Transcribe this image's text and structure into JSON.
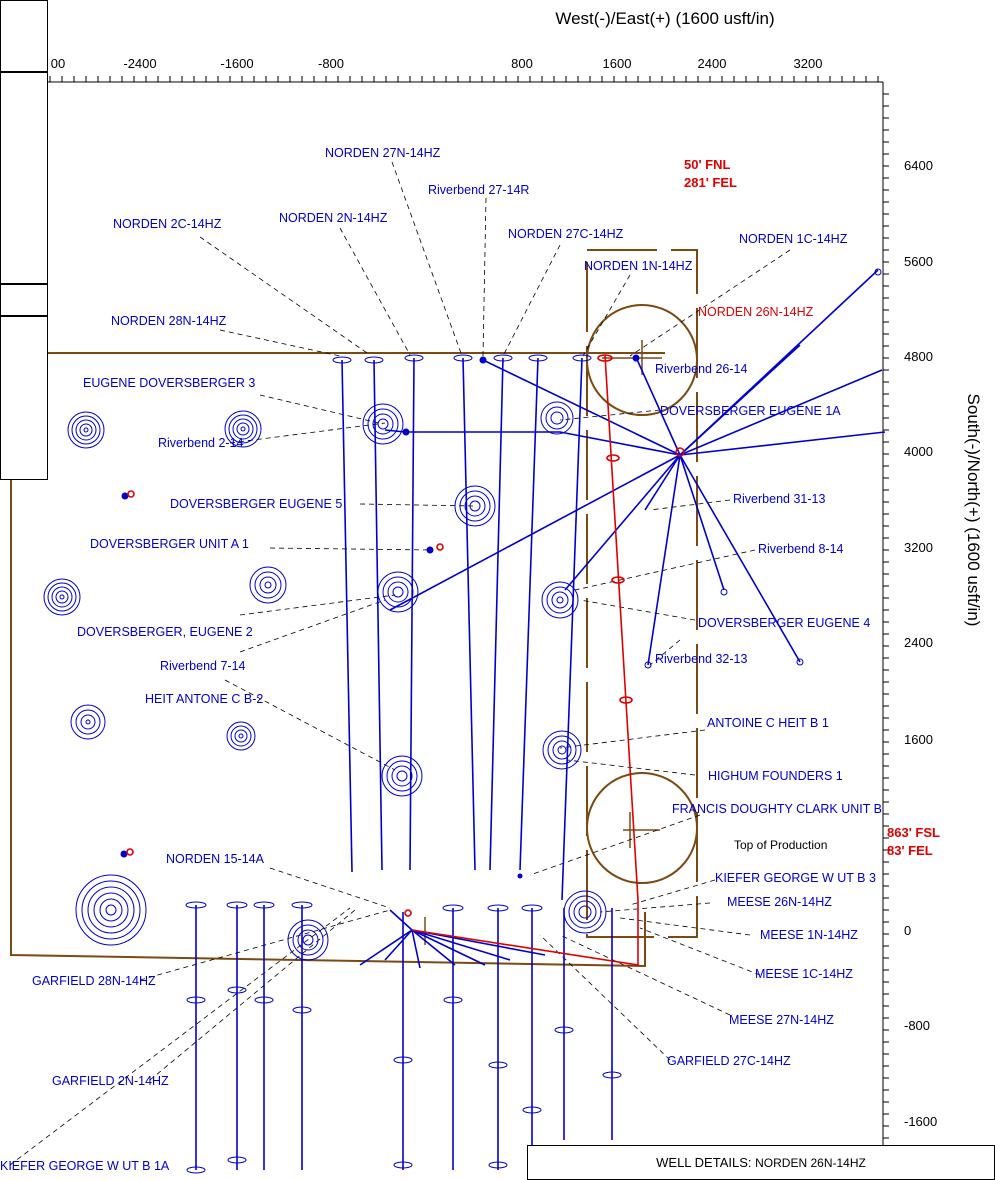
{
  "axes": {
    "top_title": "West(-)/East(+) (1600 usft/in)",
    "right_title": "South(-)/North(+) (1600 usft/in)",
    "x_ticks": [
      "00",
      "-2400",
      "-1600",
      "-800",
      "800",
      "1600",
      "2400",
      "3200"
    ],
    "y_ticks": [
      "6400",
      "5600",
      "4800",
      "4000",
      "3200",
      "2400",
      "1600",
      "0",
      "-800",
      "-1600"
    ]
  },
  "notes": {
    "heel_fnl": "50' FNL",
    "heel_fel": "281' FEL",
    "toe_fsl": "863' FSL",
    "toe_fel": "83' FEL"
  },
  "wells": {
    "norden_27n": "NORDEN 27N-14HZ",
    "riverbend_27_14r": "Riverbend 27-14R",
    "norden_2c": "NORDEN 2C-14HZ",
    "norden_2n": "NORDEN 2N-14HZ",
    "norden_27c": "NORDEN 27C-14HZ",
    "norden_1c": "NORDEN 1C-14HZ",
    "norden_1n": "NORDEN 1N-14HZ",
    "norden_28n": "NORDEN 28N-14HZ",
    "norden_26n": "NORDEN 26N-14HZ",
    "riverbend_26_14": "Riverbend 26-14",
    "eugene_doversberger_3": "EUGENE DOVERSBERGER 3",
    "doversberger_eugene_1a": "DOVERSBERGER EUGENE 1A",
    "riverbend_2_14": "Riverbend 2-14",
    "doversberger_eugene_5": "DOVERSBERGER EUGENE 5",
    "riverbend_31_13": "Riverbend 31-13",
    "doversberger_unit_a1": "DOVERSBERGER UNIT A 1",
    "riverbend_8_14": "Riverbend 8-14",
    "doversberger_eugene_2": "DOVERSBERGER, EUGENE 2",
    "doversberger_eugene_4": "DOVERSBERGER EUGENE 4",
    "riverbend_7_14": "Riverbend 7-14",
    "riverbend_32_13": "Riverbend 32-13",
    "heit_antone_c_b2": "HEIT ANTONE C B-2",
    "antoine_c_heit_b1": "ANTOINE C HEIT B 1",
    "highum_founders_1": "HIGHUM FOUNDERS 1",
    "francis_doughty_clark": "FRANCIS DOUGHTY CLARK UNIT B",
    "top_of_production": "Top of Production",
    "norden_15_14a": "NORDEN 15-14A",
    "kiefer_george_b3": "KIEFER GEORGE W UT B 3",
    "meese_26n": "MEESE 26N-14HZ",
    "meese_1n": "MEESE 1N-14HZ",
    "meese_1c": "MEESE 1C-14HZ",
    "garfield_28n": "GARFIELD 28N-14HZ",
    "meese_27n": "MEESE 27N-14HZ",
    "garfield_27c": "GARFIELD 27C-14HZ",
    "garfield_2n": "GARFIELD 2N-14HZ",
    "kiefer_george_b1a": "KIEFER GEORGE W UT B 1A"
  },
  "well_details": {
    "label": "WELL DETAILS:",
    "name": "NORDEN 26N-14HZ"
  },
  "colors": {
    "offset_wells": "#0000cc",
    "subject_well": "#e00000",
    "lease_lines": "#7a4a12"
  }
}
